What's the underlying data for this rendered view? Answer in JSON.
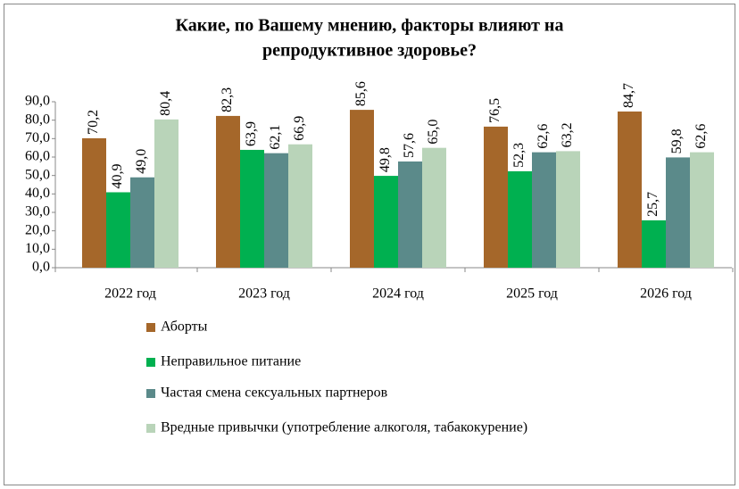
{
  "chart_data": {
    "type": "bar",
    "title": "Какие, по Вашему мнению, факторы влияют на",
    "subtitle": "репродуктивное здоровье?",
    "categories": [
      "2022 год",
      "2023 год",
      "2024 год",
      "2025 год",
      "2026 год"
    ],
    "series": [
      {
        "name": "Аборты",
        "color": "#a5672a",
        "values": [
          70.2,
          82.3,
          85.6,
          76.5,
          84.7
        ],
        "value_labels": [
          "70,2",
          "82,3",
          "85,6",
          "76,5",
          "84,7"
        ]
      },
      {
        "name": "Неправильное питание",
        "color": "#00b050",
        "values": [
          40.9,
          63.9,
          49.8,
          52.3,
          25.7
        ],
        "value_labels": [
          "40,9",
          "63,9",
          "49,8",
          "52,3",
          "25,7"
        ]
      },
      {
        "name": "Частая смена сексуальных  партнеров",
        "color": "#5b8a8a",
        "values": [
          49.0,
          62.1,
          57.6,
          62.6,
          59.8
        ],
        "value_labels": [
          "49,0",
          "62,1",
          "57,6",
          "62,6",
          "59,8"
        ]
      },
      {
        "name": "Вредные привычки (употребление  алкоголя, табакокурение)",
        "color": "#b9d4b9",
        "values": [
          80.4,
          66.9,
          65.0,
          63.2,
          62.6
        ],
        "value_labels": [
          "80,4",
          "66,9",
          "65,0",
          "63,2",
          "62,6"
        ]
      }
    ],
    "ylim": [
      0,
      90
    ],
    "yticks": [
      {
        "value": 0,
        "label": "0,0"
      },
      {
        "value": 10,
        "label": "10,0"
      },
      {
        "value": 20,
        "label": "20,0"
      },
      {
        "value": 30,
        "label": "30,0"
      },
      {
        "value": 40,
        "label": "40,0"
      },
      {
        "value": 50,
        "label": "50,0"
      },
      {
        "value": 60,
        "label": "60,0"
      },
      {
        "value": 70,
        "label": "70,0"
      },
      {
        "value": 80,
        "label": "80,0"
      },
      {
        "value": 90,
        "label": "90,0"
      }
    ],
    "grid": false
  }
}
